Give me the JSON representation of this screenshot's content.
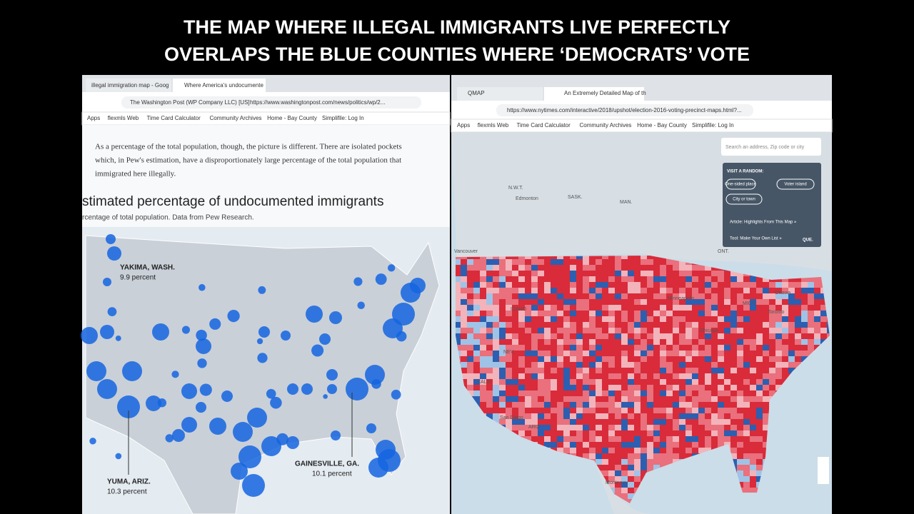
{
  "caption": {
    "lines": [
      "THE MAP WHERE ILLEGAL IMMIGRANTS LIVE PERFECTLY",
      "OVERLAPS THE BLUE COUNTIES WHERE ‘DEMOCRATS’ VOTE"
    ]
  },
  "left_browser": {
    "tabs": [
      "illegal immigration map - Goog",
      "Where America's undocumente"
    ],
    "site": "The Washington Post (WP Company LLC) [US]",
    "address": "https://www.washingtonpost.com/news/politics/wp/2...",
    "bookmarks": [
      "Apps",
      "flexmls Web",
      "Time Card Calculator",
      "Community Archives",
      "Home - Bay County",
      "Simplifile: Log In"
    ],
    "article": {
      "paragraph": [
        "As a percentage of the total population, though, the picture is different. There are isolated pockets",
        "which, in Pew's estimation, have a disproportionately large percentage of the total population that",
        "immigrated here illegally."
      ],
      "heading": "stimated percentage of undocumented immigrants",
      "subheading": "rcentage of total population. Data from Pew Research."
    },
    "map_labels": [
      {
        "place": "YAKIMA, WASH.",
        "value": "9.9 percent"
      },
      {
        "place": "YUMA, ARIZ.",
        "value": "10.3 percent"
      },
      {
        "place": "GAINESVILLE, GA.",
        "value": "10.1 percent"
      }
    ]
  },
  "right_browser": {
    "tabs": [
      "QMAP",
      "An Extremely Detailed Map of th"
    ],
    "address": "https://www.nytimes.com/interactive/2018/upshot/election-2016-voting-precinct-maps.html?...",
    "bookmarks": [
      "Apps",
      "flexmls Web",
      "Time Card Calculator",
      "Community Archives",
      "Home - Bay County",
      "Simplifile: Log In"
    ],
    "panel": {
      "search": "Search an address, Zip code or city",
      "visit_heading": "VISIT A RANDOM:",
      "buttons": [
        "One-sided place",
        "Voter island",
        "City or town"
      ],
      "links": [
        "Article: Highlights From This Map »",
        "Tool: Make Your Own List »"
      ],
      "overflow": "QUE."
    },
    "map_labels": [
      "N.W.T.",
      "Edmonton",
      "SASK.",
      "MAN.",
      "ONT.",
      "Vancouver",
      "Ottawa",
      "Toronto",
      "Chicago",
      "IDAHO",
      "NEV.",
      "CALIF.",
      "ARIZ.",
      "San Diego",
      "MICH.",
      "Minneapolis",
      "Monterrey"
    ]
  }
}
